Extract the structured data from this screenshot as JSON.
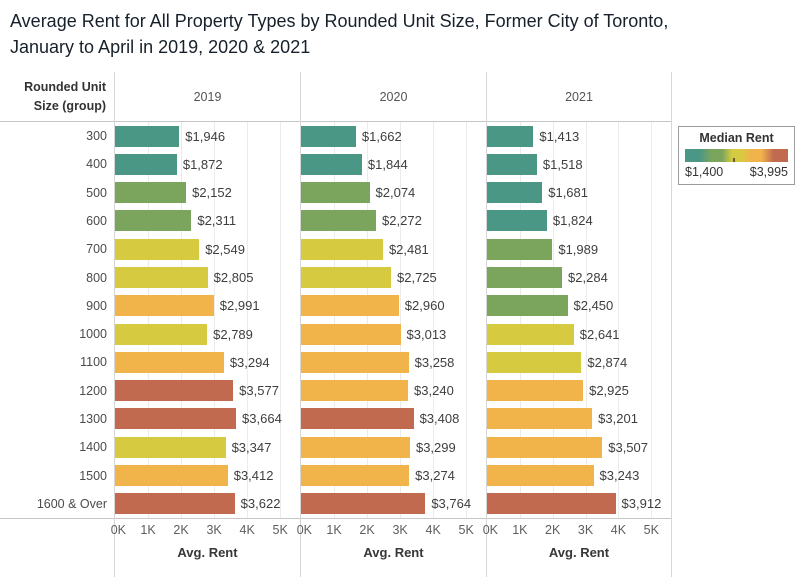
{
  "title": "Average Rent for All Property Types by Rounded Unit Size, Former City of Toronto, January to April in 2019, 2020 & 2021",
  "row_header": "Rounded Unit Size (group)",
  "legend": {
    "title": "Median Rent",
    "min_label": "$1,400",
    "max_label": "$3,995",
    "gradient_colors": [
      "#4A9786",
      "#7BA55D",
      "#D6CB40",
      "#F0B44B",
      "#C16A50"
    ]
  },
  "axis": {
    "ticks": [
      "0K",
      "1K",
      "2K",
      "3K",
      "4K",
      "5K"
    ],
    "tick_values": [
      0,
      1000,
      2000,
      3000,
      4000,
      5000
    ],
    "label": "Avg. Rent",
    "max": 5600
  },
  "chart_data": {
    "type": "bar",
    "orientation": "horizontal",
    "title": "Average Rent for All Property Types by Rounded Unit Size, Former City of Toronto, January to April in 2019, 2020 & 2021",
    "xlabel": "Avg. Rent",
    "ylabel": "Rounded Unit Size (group)",
    "xlim": [
      0,
      5600
    ],
    "grid": true,
    "color_encoding": "Median Rent ($1,400 teal to $3,995 red)",
    "categories": [
      "300",
      "400",
      "500",
      "600",
      "700",
      "800",
      "900",
      "1000",
      "1100",
      "1200",
      "1300",
      "1400",
      "1500",
      "1600 & Over"
    ],
    "series": [
      {
        "name": "2019",
        "values": [
          1946,
          1872,
          2152,
          2311,
          2549,
          2805,
          2991,
          2789,
          3294,
          3577,
          3664,
          3347,
          3412,
          3622
        ],
        "labels": [
          "$1,946",
          "$1,872",
          "$2,152",
          "$2,311",
          "$2,549",
          "$2,805",
          "$2,991",
          "$2,789",
          "$3,294",
          "$3,577",
          "$3,664",
          "$3,347",
          "$3,412",
          "$3,622"
        ],
        "colors": [
          "#4A9786",
          "#4A9786",
          "#7BA55D",
          "#7BA55D",
          "#D6CB40",
          "#D6CB40",
          "#F0B44B",
          "#D6CB40",
          "#F0B44B",
          "#C16A50",
          "#C16A50",
          "#D6CB40",
          "#F0B44B",
          "#C16A50"
        ]
      },
      {
        "name": "2020",
        "values": [
          1662,
          1844,
          2074,
          2272,
          2481,
          2725,
          2960,
          3013,
          3258,
          3240,
          3408,
          3299,
          3274,
          3764
        ],
        "labels": [
          "$1,662",
          "$1,844",
          "$2,074",
          "$2,272",
          "$2,481",
          "$2,725",
          "$2,960",
          "$3,013",
          "$3,258",
          "$3,240",
          "$3,408",
          "$3,299",
          "$3,274",
          "$3,764"
        ],
        "colors": [
          "#4A9786",
          "#4A9786",
          "#7BA55D",
          "#7BA55D",
          "#D6CB40",
          "#D6CB40",
          "#F0B44B",
          "#F0B44B",
          "#F0B44B",
          "#F0B44B",
          "#C16A50",
          "#F0B44B",
          "#F0B44B",
          "#C16A50"
        ]
      },
      {
        "name": "2021",
        "values": [
          1413,
          1518,
          1681,
          1824,
          1989,
          2284,
          2450,
          2641,
          2874,
          2925,
          3201,
          3507,
          3243,
          3912
        ],
        "labels": [
          "$1,413",
          "$1,518",
          "$1,681",
          "$1,824",
          "$1,989",
          "$2,284",
          "$2,450",
          "$2,641",
          "$2,874",
          "$2,925",
          "$3,201",
          "$3,507",
          "$3,243",
          "$3,912"
        ],
        "colors": [
          "#4A9786",
          "#4A9786",
          "#4A9786",
          "#4A9786",
          "#7BA55D",
          "#7BA55D",
          "#7BA55D",
          "#D6CB40",
          "#D6CB40",
          "#F0B44B",
          "#F0B44B",
          "#F0B44B",
          "#F0B44B",
          "#C16A50"
        ]
      }
    ]
  }
}
